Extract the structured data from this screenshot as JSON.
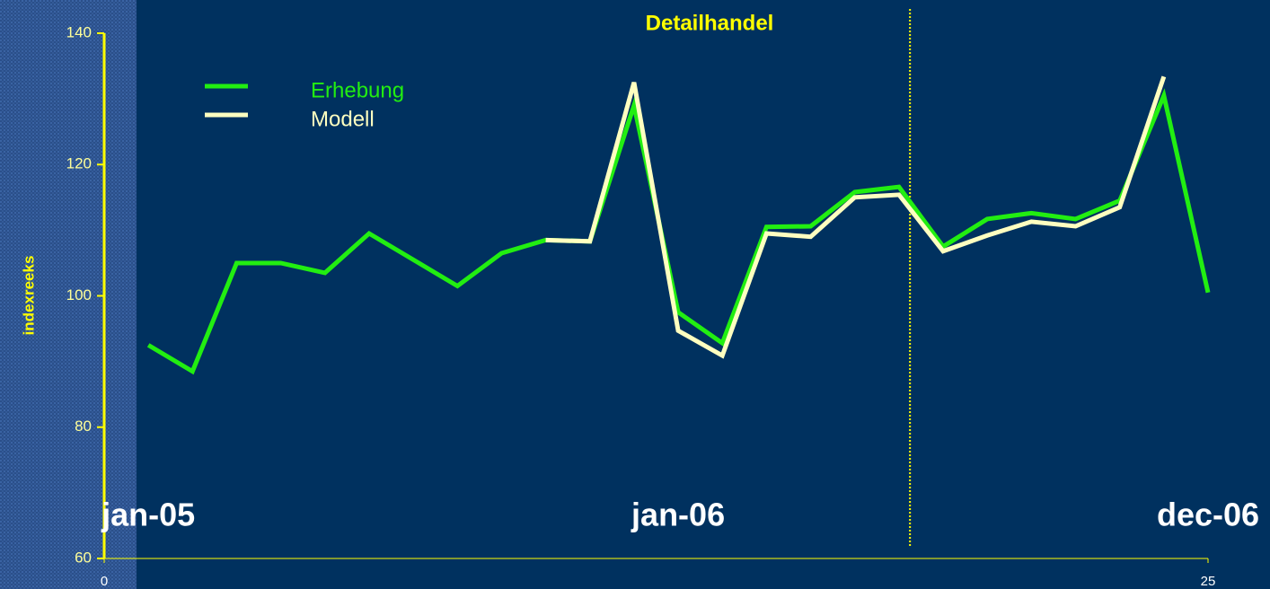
{
  "chart_data": {
    "type": "line",
    "title": "Detailhandel",
    "y_label": "indexreeks",
    "x": [
      1,
      2,
      3,
      4,
      5,
      6,
      7,
      8,
      9,
      10,
      11,
      12,
      13,
      14,
      15,
      16,
      17,
      18,
      19,
      20,
      21,
      22,
      23,
      24,
      25
    ],
    "series": [
      {
        "name": "Erhebung",
        "color": "#22ee11",
        "values": [
          92.5,
          88.5,
          105,
          105,
          103.5,
          109.5,
          105.5,
          101.5,
          106.5,
          108.5,
          108.3,
          129,
          97.5,
          92.8,
          110.5,
          110.6,
          115.8,
          116.6,
          107.5,
          111.7,
          112.6,
          111.7,
          114.5,
          130.5,
          100.5
        ]
      },
      {
        "name": "Modell",
        "color": "#ffffc0",
        "values": [
          null,
          null,
          null,
          null,
          null,
          null,
          null,
          null,
          null,
          108.5,
          108.3,
          132.5,
          94.7,
          90.9,
          109.5,
          109,
          115,
          115.4,
          106.8,
          109.2,
          111.3,
          110.6,
          113.5,
          133.4,
          null
        ]
      }
    ],
    "xlim": [
      0,
      25
    ],
    "xticks": [
      0,
      25
    ],
    "ylim": [
      60,
      140
    ],
    "yticks": [
      60,
      80,
      100,
      120,
      140
    ],
    "vline_x": 18.25,
    "annotations": [
      {
        "text": "jan-05",
        "x": 1
      },
      {
        "text": "jan-06",
        "x": 13
      },
      {
        "text": "dec-06",
        "x": 25
      }
    ]
  }
}
